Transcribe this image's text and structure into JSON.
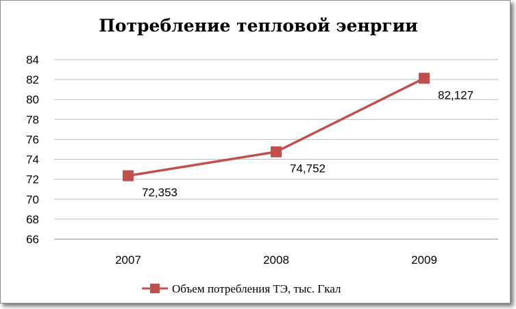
{
  "chart_data": {
    "type": "line",
    "title": "Потребление тепловой эенргии",
    "categories": [
      "2007",
      "2008",
      "2009"
    ],
    "series": [
      {
        "name": "Объем потребления ТЭ, тыс. Гкал",
        "values": [
          72.353,
          74.752,
          82.127
        ],
        "labels": [
          "72,353",
          "74,752",
          "82,127"
        ]
      }
    ],
    "y_ticks": [
      "66",
      "68",
      "70",
      "72",
      "74",
      "76",
      "78",
      "80",
      "82",
      "84"
    ],
    "ylim": [
      66,
      84
    ],
    "grid": true,
    "legend_position": "bottom",
    "series_color": "#c0504d"
  }
}
